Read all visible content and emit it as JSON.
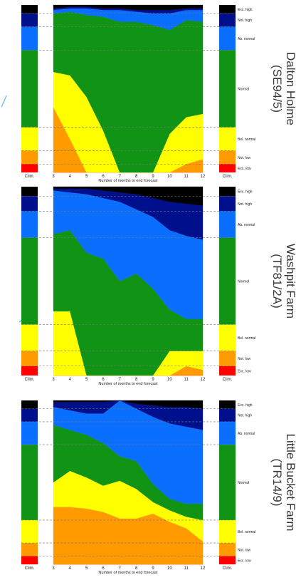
{
  "colors": {
    "exc_high": "#000000",
    "not_high": "#00108c",
    "ab_normal": "#0a6eff",
    "normal": "#119316",
    "bel_normal": "#ffff00",
    "not_low": "#ff9a00",
    "exc_low": "#ff0000",
    "decor_line": "#56c2e6"
  },
  "chart_data": [
    {
      "type": "area",
      "title": "Dalton Holme\n(SE94/5)",
      "xlabel": "Number of months to end forecast",
      "x_ticks": [
        "Clim.",
        "3",
        "4",
        "5",
        "6",
        "7",
        "8",
        "9",
        "10",
        "11",
        "12",
        "Clim."
      ],
      "x": [
        3,
        4,
        5,
        6,
        7,
        8,
        9,
        10,
        11,
        12
      ],
      "band_order_bottom_to_top": [
        "Exc. low",
        "Not. low",
        "Bel. normal",
        "Normal",
        "Ab. normal",
        "Not. high",
        "Exc. high"
      ],
      "clim_cumulative": [
        5,
        13,
        27,
        73,
        87,
        95,
        100
      ],
      "cumulative": [
        [
          0,
          0,
          0,
          0,
          0,
          0,
          0,
          0,
          0,
          0
        ],
        [
          39,
          20,
          0,
          0,
          0,
          0,
          0,
          0,
          5,
          8
        ],
        [
          60,
          58,
          45,
          25,
          0,
          0,
          0,
          23,
          33,
          35
        ],
        [
          95,
          96,
          94,
          93,
          90,
          90,
          88,
          85,
          91,
          90
        ],
        [
          97,
          98,
          98,
          97,
          97,
          96,
          95,
          95,
          97,
          97
        ],
        [
          98,
          99,
          99,
          98,
          98,
          97,
          97,
          97,
          98,
          98
        ],
        [
          100,
          100,
          100,
          100,
          100,
          100,
          100,
          100,
          100,
          100
        ]
      ],
      "category_labels": [
        "Exc. high",
        "Not. high",
        "Ab. normal",
        "Normal",
        "Bel. normal",
        "Not. low",
        "Exc. low"
      ]
    },
    {
      "type": "area",
      "title": "Washpit Farm\n(TF81/2A)",
      "xlabel": "Number of months to end forecast",
      "x_ticks": [
        "Clim.",
        "3",
        "4",
        "5",
        "6",
        "7",
        "8",
        "9",
        "10",
        "11",
        "12",
        "Clim."
      ],
      "x": [
        3,
        4,
        5,
        6,
        7,
        8,
        9,
        10,
        11,
        12
      ],
      "band_order_bottom_to_top": [
        "Exc. low",
        "Not. low",
        "Bel. normal",
        "Normal",
        "Ab. normal",
        "Not. high",
        "Exc. high"
      ],
      "clim_cumulative": [
        5,
        13,
        27,
        73,
        87,
        95,
        100
      ],
      "cumulative": [
        [
          0,
          0,
          0,
          0,
          0,
          0,
          0,
          0,
          0,
          0
        ],
        [
          0,
          0,
          0,
          0,
          0,
          0,
          0,
          0,
          5,
          3
        ],
        [
          34,
          34,
          0,
          0,
          0,
          0,
          0,
          13,
          13,
          13
        ],
        [
          75,
          77,
          65,
          62,
          50,
          54,
          46,
          35,
          30,
          30
        ],
        [
          98,
          97,
          96,
          94,
          92,
          88,
          84,
          77,
          74,
          72
        ],
        [
          99,
          99,
          99,
          98,
          97,
          96,
          94,
          92,
          91,
          90
        ],
        [
          100,
          100,
          100,
          100,
          100,
          100,
          100,
          100,
          100,
          100
        ]
      ],
      "category_labels": [
        "Exc. high",
        "Not. high",
        "Ab. normal",
        "Normal",
        "Bel. normal",
        "Not. low",
        "Exc. low"
      ]
    },
    {
      "type": "area",
      "title": "Little Bucket Farm\n(TR14/9)",
      "xlabel": "Number of months to end forecast",
      "x_ticks": [
        "Clim.",
        "3",
        "4",
        "5",
        "6",
        "7",
        "8",
        "9",
        "10",
        "11",
        "12",
        "Clim."
      ],
      "x": [
        3,
        4,
        5,
        6,
        7,
        8,
        9,
        10,
        11,
        12
      ],
      "band_order_bottom_to_top": [
        "Exc. low",
        "Not. low",
        "Bel. normal",
        "Normal",
        "Ab. normal",
        "Not. high",
        "Exc. high"
      ],
      "clim_cumulative": [
        5,
        13,
        27,
        73,
        87,
        95,
        100
      ],
      "cumulative": [
        [
          0,
          0,
          0,
          0,
          0,
          0,
          0,
          0,
          0,
          0
        ],
        [
          35,
          35,
          34,
          32,
          28,
          28,
          31,
          26,
          22,
          14
        ],
        [
          50,
          57,
          53,
          48,
          51,
          46,
          38,
          33,
          29,
          27
        ],
        [
          85,
          82,
          79,
          74,
          66,
          63,
          49,
          40,
          37,
          37
        ],
        [
          96,
          94,
          92,
          92,
          100,
          95,
          90,
          86,
          84,
          82
        ],
        [
          99,
          99,
          99,
          99,
          100,
          98,
          97,
          96,
          96,
          95
        ],
        [
          100,
          100,
          100,
          100,
          100,
          100,
          100,
          100,
          100,
          100
        ]
      ],
      "category_labels": [
        "Exc. high",
        "Not. high",
        "Ab. normal",
        "Normal",
        "Bel. normal",
        "Not. low",
        "Exc. low"
      ]
    }
  ]
}
